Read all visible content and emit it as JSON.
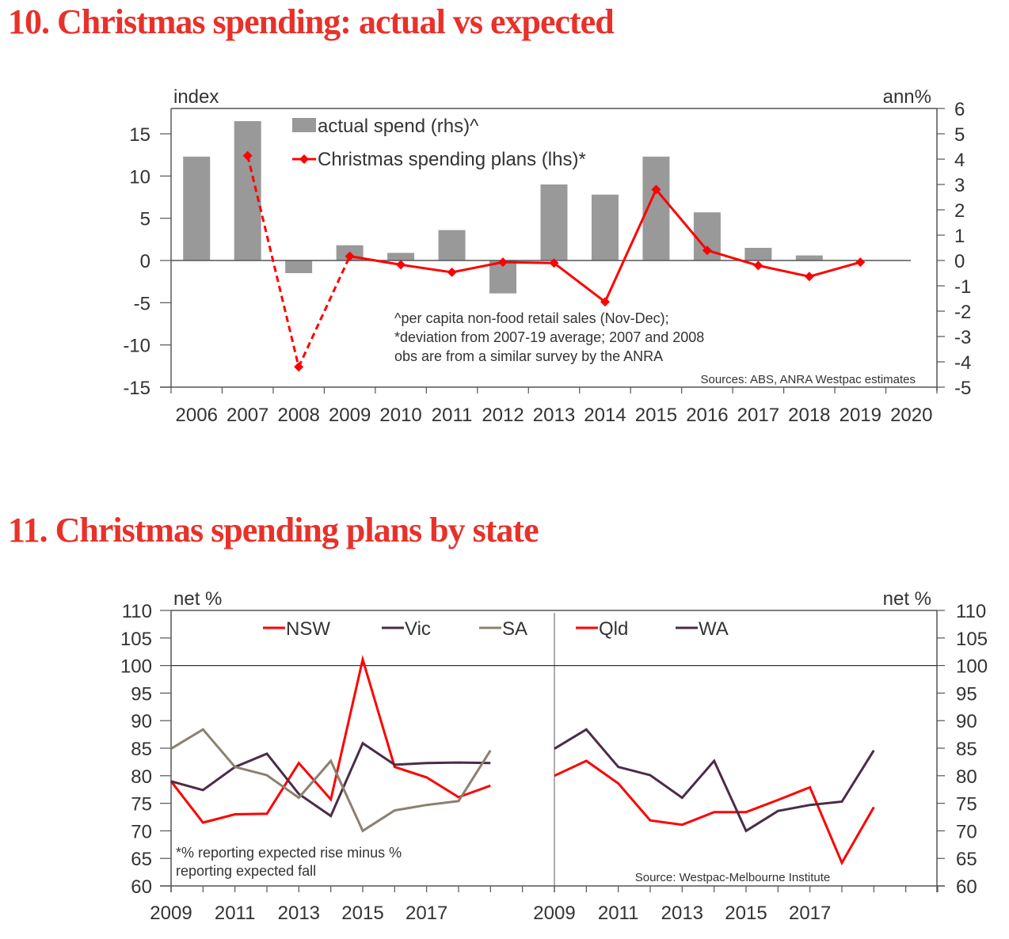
{
  "chart_data": [
    {
      "type": "bar+line",
      "title": "10. Christmas spending: actual vs expected",
      "left_axis_label": "index",
      "right_axis_label": "ann%",
      "categories": [
        "2006",
        "2007",
        "2008",
        "2009",
        "2010",
        "2011",
        "2012",
        "2013",
        "2014",
        "2015",
        "2016",
        "2017",
        "2018",
        "2019",
        "2020"
      ],
      "left_ylim": [
        -15,
        18
      ],
      "left_yticks": [
        15,
        10,
        5,
        0,
        -5,
        -10,
        -15
      ],
      "right_ylim": [
        -5,
        6
      ],
      "right_yticks": [
        6,
        5,
        4,
        3,
        2,
        1,
        0,
        -1,
        -2,
        -3,
        -4,
        -5
      ],
      "series": [
        {
          "name": "actual spend (rhs)^",
          "type": "bar",
          "axis": "right",
          "color": "#999999",
          "values": [
            4.1,
            5.5,
            -0.5,
            0.6,
            0.3,
            1.2,
            -1.3,
            3.0,
            2.6,
            4.1,
            1.9,
            0.5,
            0.2,
            null,
            null
          ]
        },
        {
          "name": "Christmas spending plans (lhs)*",
          "type": "line",
          "axis": "left",
          "color": "#ff0000",
          "marker": "diamond",
          "dashed_until": "2009",
          "values": [
            null,
            12.4,
            -12.6,
            0.5,
            -0.5,
            -1.4,
            -0.2,
            -0.3,
            -4.9,
            8.4,
            1.2,
            -0.6,
            -1.9,
            -0.2,
            null
          ]
        }
      ],
      "annotations": [
        "^per capita non-food retail sales (Nov-Dec);",
        "*deviation from 2007-19 average; 2007 and 2008",
        "obs are from a similar survey by the ANRA"
      ],
      "source": "Sources: ABS, ANRA Westpac estimates",
      "legend_position": "top-center"
    },
    {
      "type": "line",
      "title": "11. Christmas spending plans by state",
      "left_axis_label": "net %",
      "right_axis_label": "net %",
      "ylim": [
        60,
        110
      ],
      "yticks": [
        110,
        105,
        100,
        95,
        90,
        85,
        80,
        75,
        70,
        65,
        60
      ],
      "reference_line": 100,
      "x": [
        2009,
        2010,
        2011,
        2012,
        2013,
        2014,
        2015,
        2016,
        2017,
        2018,
        2019
      ],
      "xtick_labels": [
        "2009",
        "2011",
        "2013",
        "2015",
        "2017"
      ],
      "panels": [
        {
          "name": "left",
          "series": [
            {
              "name": "NSW",
              "color": "#ff0000",
              "values": [
                79.0,
                71.5,
                73.0,
                73.1,
                82.3,
                75.7,
                101.1,
                81.6,
                79.7,
                76.1,
                78.2
              ]
            },
            {
              "name": "Vic",
              "color": "#4b2c48",
              "values": [
                79.0,
                77.4,
                81.6,
                84.0,
                76.7,
                72.7,
                85.9,
                82.0,
                82.3,
                82.4,
                82.3
              ]
            },
            {
              "name": "SA",
              "color": "#8c8070",
              "values": [
                84.9,
                88.4,
                81.6,
                80.1,
                76.0,
                82.7,
                70.0,
                73.7,
                74.7,
                75.4,
                84.6
              ]
            }
          ],
          "annotation": [
            "*% reporting expected rise minus %",
            "reporting expected fall"
          ]
        },
        {
          "name": "right",
          "series": [
            {
              "name": "Qld",
              "color": "#ff0000",
              "values": [
                80.0,
                82.7,
                78.6,
                71.9,
                71.1,
                73.4,
                73.4,
                75.6,
                77.9,
                64.2,
                74.3
              ]
            },
            {
              "name": "WA",
              "color": "#4b2c48",
              "values": [
                84.9,
                88.4,
                81.6,
                80.1,
                76.0,
                82.7,
                70.0,
                73.6,
                74.7,
                75.3,
                84.6
              ]
            }
          ],
          "source": "Source: Westpac-Melbourne Institute"
        }
      ],
      "legend_position": "top"
    }
  ]
}
